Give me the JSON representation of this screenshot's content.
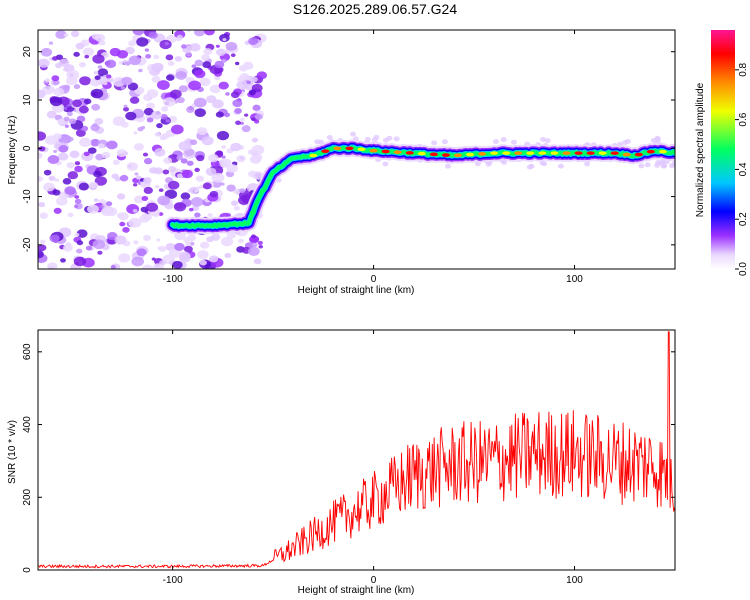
{
  "title": "S126.2025.289.06.57.G24",
  "chart_data": [
    {
      "type": "heatmap",
      "xlabel": "Height of straight line (km)",
      "ylabel": "Frequency (Hz)",
      "xlim": [
        -167,
        150
      ],
      "ylim": [
        -25,
        24.5
      ],
      "xticks": [
        "-100",
        "0",
        "100"
      ],
      "yticks": [
        "20",
        "10",
        "0",
        "-10",
        "-20"
      ],
      "colorbar": {
        "label": "Normalized spectral amplitude",
        "ticks": [
          "0.0",
          "0.2",
          "0.4",
          "0.6",
          "0.8"
        ],
        "range": [
          0,
          0.96
        ],
        "colors": [
          "#ffffff",
          "#ead8ff",
          "#9b30ff",
          "#0000ff",
          "#00c8ff",
          "#00ff60",
          "#f0ff00",
          "#ff8c00",
          "#ff0000",
          "#ff1493"
        ]
      },
      "ridge": {
        "x": [
          -100,
          -80,
          -62,
          -58,
          -50,
          -40,
          -30,
          -20,
          -10,
          0,
          20,
          40,
          60,
          80,
          100,
          120,
          130,
          140,
          150
        ],
        "freq": [
          -16,
          -16,
          -15.5,
          -11,
          -5,
          -2,
          -1.5,
          0,
          0,
          -0.5,
          -1,
          -1.5,
          -1,
          -1,
          -1,
          -1,
          -1.5,
          -0.5,
          -1
        ]
      }
    },
    {
      "type": "line",
      "xlabel": "Height of straight line (km)",
      "ylabel": "SNR (10 * v/v)",
      "xlim": [
        -167,
        150
      ],
      "ylim": [
        0,
        660
      ],
      "xticks": [
        "-100",
        "0",
        "100"
      ],
      "yticks": [
        "0",
        "200",
        "400",
        "600"
      ],
      "color": "#ff0000",
      "trend": {
        "x": [
          -167,
          -100,
          -55,
          -40,
          -20,
          0,
          20,
          40,
          60,
          80,
          100,
          120,
          140,
          150
        ],
        "y": [
          10,
          10,
          12,
          60,
          130,
          190,
          260,
          290,
          300,
          320,
          320,
          300,
          290,
          230
        ]
      },
      "peak": {
        "x": 147,
        "y": 655
      }
    }
  ]
}
